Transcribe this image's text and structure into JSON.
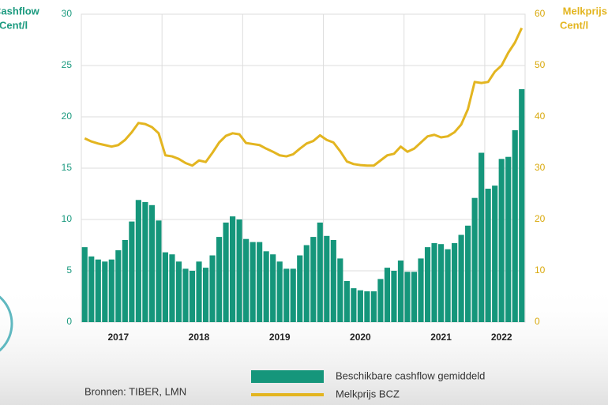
{
  "chart_data": {
    "type": "bar_line",
    "y_title": [
      "Cashflow",
      "Cent/l"
    ],
    "y2_title": [
      "Melkprijs",
      "Cent/l"
    ],
    "source": "Bronnen: TIBER, LMN",
    "categories": [
      null,
      null,
      null,
      null,
      null,
      "2017",
      null,
      null,
      null,
      null,
      null,
      null,
      null,
      null,
      null,
      null,
      null,
      "2018",
      null,
      null,
      null,
      null,
      null,
      null,
      null,
      null,
      null,
      null,
      null,
      "2019",
      null,
      null,
      null,
      null,
      null,
      null,
      null,
      null,
      null,
      null,
      null,
      "2020",
      null,
      null,
      null,
      null,
      null,
      null,
      null,
      null,
      null,
      null,
      null,
      "2021",
      null,
      null,
      null,
      null,
      null,
      null,
      null,
      null,
      "2022",
      null,
      null,
      null
    ],
    "series": [
      {
        "name": "Beschikbare cashflow gemiddeld",
        "color": "#15967b",
        "kind": "bar",
        "values": [
          7.3,
          6.4,
          6.1,
          5.9,
          6.1,
          7.0,
          8.0,
          9.8,
          11.9,
          11.7,
          11.4,
          9.9,
          6.8,
          6.6,
          5.9,
          5.2,
          5.0,
          5.9,
          5.3,
          6.5,
          8.3,
          9.7,
          10.3,
          10.0,
          8.1,
          7.8,
          7.8,
          6.9,
          6.6,
          5.9,
          5.2,
          5.2,
          6.5,
          7.5,
          8.3,
          9.7,
          8.4,
          8.0,
          6.2,
          4.0,
          3.3,
          3.1,
          3.0,
          3.0,
          4.2,
          5.3,
          5.0,
          6.0,
          4.9,
          4.9,
          6.2,
          7.3,
          7.7,
          7.6,
          7.1,
          7.7,
          8.5,
          9.4,
          12.1,
          16.5,
          13.0,
          13.3,
          15.9,
          16.1,
          18.7,
          22.7
        ]
      },
      {
        "name": "Melkprijs BCZ",
        "color": "#e3b520",
        "kind": "line",
        "axis": "y2",
        "values": [
          35.8,
          35.2,
          34.8,
          34.5,
          34.2,
          34.5,
          35.5,
          37,
          38.8,
          38.6,
          38,
          36.8,
          32.5,
          32.3,
          31.8,
          31,
          30.5,
          31.5,
          31.2,
          33,
          35,
          36.3,
          36.8,
          36.6,
          34.9,
          34.7,
          34.5,
          33.8,
          33.2,
          32.5,
          32.3,
          32.7,
          33.8,
          34.8,
          35.3,
          36.4,
          35.5,
          35,
          33.3,
          31.3,
          30.8,
          30.6,
          30.5,
          30.5,
          31.5,
          32.5,
          32.8,
          34.2,
          33.2,
          33.8,
          35,
          36.2,
          36.5,
          36,
          36.2,
          37,
          38.5,
          41.5,
          46.8,
          46.6,
          46.8,
          48.8,
          50,
          52.5,
          54.5,
          57.3
        ]
      }
    ],
    "ylim": [
      0,
      30
    ],
    "yticks": [
      0,
      5,
      10,
      15,
      20,
      25,
      30
    ],
    "y2lim": [
      0,
      60
    ],
    "y2ticks": [
      0,
      10,
      20,
      30,
      40,
      50,
      60
    ],
    "grid": true
  }
}
